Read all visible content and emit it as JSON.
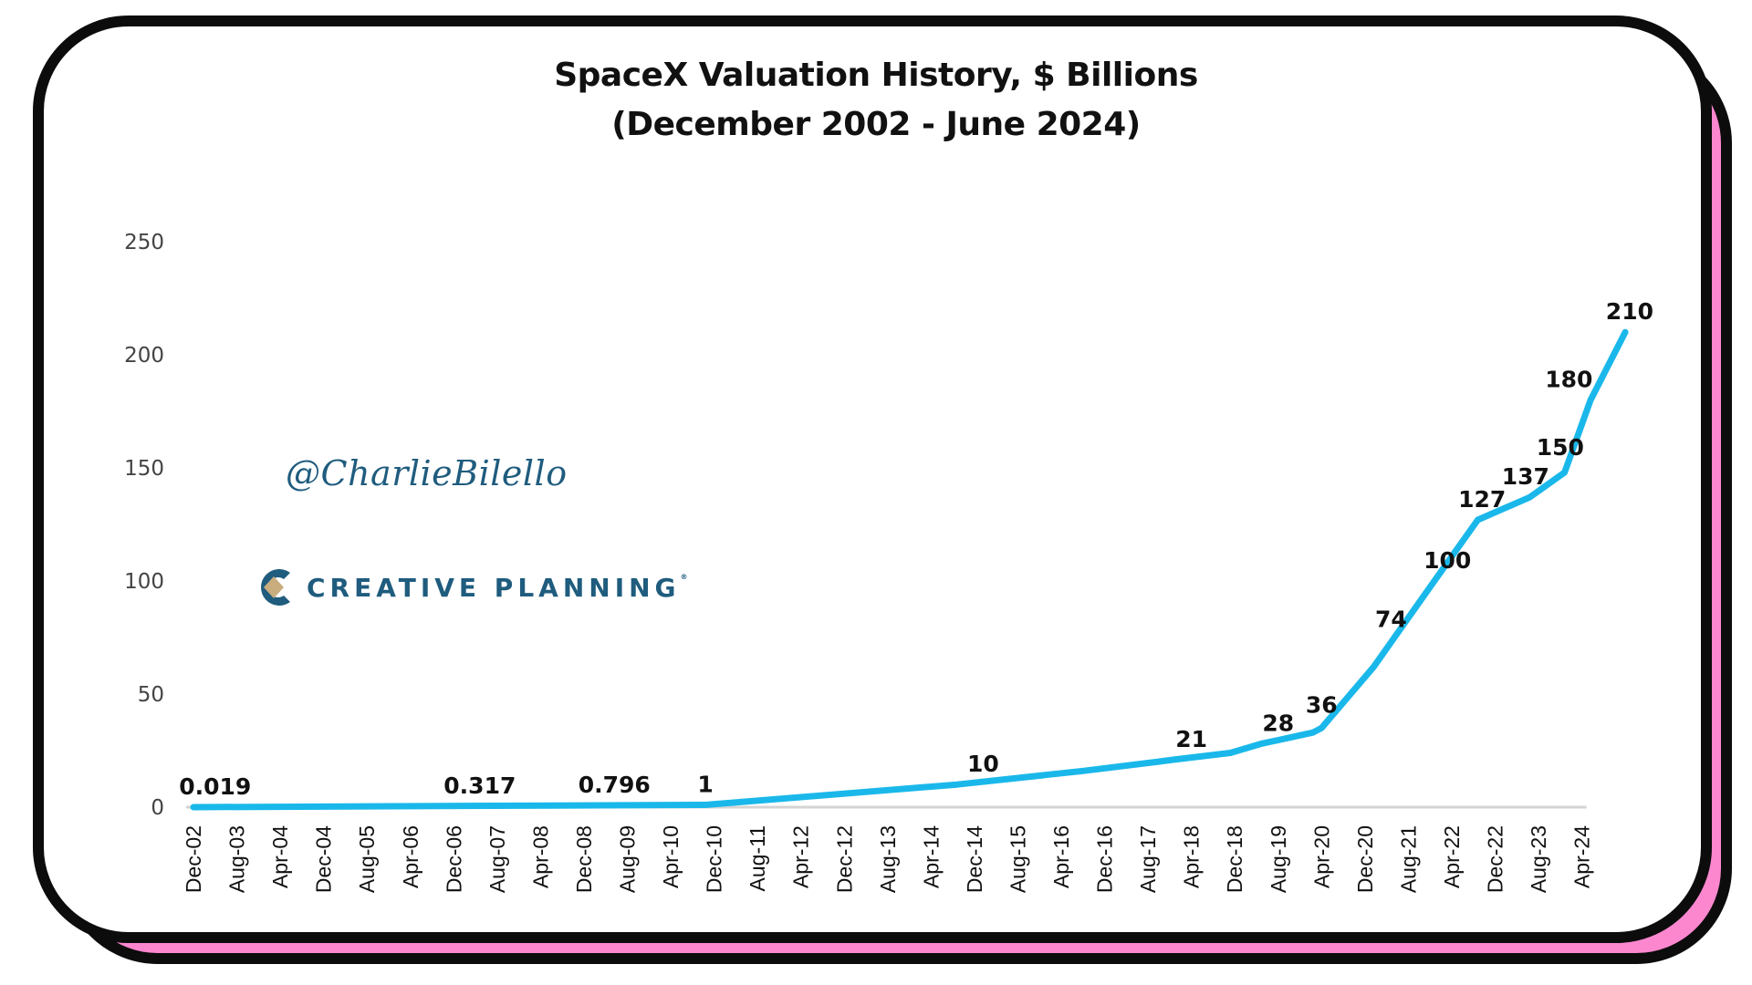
{
  "watermark": "@CharlieBilello",
  "logo": {
    "text": "CREATIVE PLANNING",
    "reg": "®",
    "colors": {
      "primary": "#1f5c7e",
      "accent": "#c9ad7f"
    }
  },
  "theme": {
    "line_color": "#1ab8ea",
    "frame_color": "#0c0c0c",
    "shadow_color": "#fc87cf"
  },
  "chart_data": {
    "type": "line",
    "title": "SpaceX Valuation History, $ Billions",
    "subtitle": "(December 2002 - June 2024)",
    "xlabel": "",
    "ylabel": "",
    "ylim": [
      0,
      250
    ],
    "yticks": [
      0,
      50,
      100,
      150,
      200,
      250
    ],
    "grid": false,
    "legend": "none",
    "x_tick_labels": [
      "Dec-02",
      "Aug-03",
      "Apr-04",
      "Dec-04",
      "Aug-05",
      "Apr-06",
      "Dec-06",
      "Aug-07",
      "Apr-08",
      "Dec-08",
      "Aug-09",
      "Apr-10",
      "Dec-10",
      "Aug-11",
      "Apr-12",
      "Dec-12",
      "Aug-13",
      "Apr-14",
      "Dec-14",
      "Aug-15",
      "Apr-16",
      "Dec-16",
      "Aug-17",
      "Apr-18",
      "Dec-18",
      "Aug-19",
      "Apr-20",
      "Dec-20",
      "Aug-21",
      "Apr-22",
      "Dec-22",
      "Aug-23",
      "Apr-24"
    ],
    "series": [
      {
        "name": "SpaceX Valuation ($B)",
        "points": [
          {
            "x": 0,
            "y": 0.019
          },
          {
            "x": 6.5,
            "y": 0.317
          },
          {
            "x": 9.7,
            "y": 0.796
          },
          {
            "x": 11.8,
            "y": 1
          },
          {
            "x": 17.6,
            "y": 10
          },
          {
            "x": 22.6,
            "y": 21
          },
          {
            "x": 23.9,
            "y": 24
          },
          {
            "x": 24.6,
            "y": 28
          },
          {
            "x": 25.8,
            "y": 33
          },
          {
            "x": 25.9,
            "y": 36
          },
          {
            "x": 27.2,
            "y": 74
          },
          {
            "x": 28.6,
            "y": 100
          },
          {
            "x": 29.8,
            "y": 127
          },
          {
            "x": 30.8,
            "y": 137
          },
          {
            "x": 31.8,
            "y": 150
          },
          {
            "x": 31.9,
            "y": 180
          },
          {
            "x": 32.0,
            "y": 210
          }
        ]
      }
    ],
    "line_points": [
      [
        0,
        0.019
      ],
      [
        11.8,
        1
      ],
      [
        17.6,
        10
      ],
      [
        20.5,
        16
      ],
      [
        22.2,
        20
      ],
      [
        22.6,
        21
      ],
      [
        23.9,
        24
      ],
      [
        24.6,
        28
      ],
      [
        25.8,
        33
      ],
      [
        26.0,
        35
      ],
      [
        27.2,
        62
      ],
      [
        28.6,
        100
      ],
      [
        29.6,
        127
      ],
      [
        30.8,
        137
      ],
      [
        31.6,
        148
      ],
      [
        32.2,
        180
      ],
      [
        33.0,
        210
      ]
    ],
    "data_labels": [
      {
        "text": "0.019",
        "x": 0.5,
        "y": 0.019
      },
      {
        "text": "0.317",
        "x": 6.6,
        "y": 0.317
      },
      {
        "text": "0.796",
        "x": 9.7,
        "y": 0.796
      },
      {
        "text": "1",
        "x": 11.8,
        "y": 1
      },
      {
        "text": "10",
        "x": 18.2,
        "y": 10
      },
      {
        "text": "21",
        "x": 23.0,
        "y": 21
      },
      {
        "text": "28",
        "x": 25.0,
        "y": 28
      },
      {
        "text": "36",
        "x": 26.0,
        "y": 36
      },
      {
        "text": "74",
        "x": 27.6,
        "y": 74
      },
      {
        "text": "100",
        "x": 28.9,
        "y": 100
      },
      {
        "text": "127",
        "x": 29.7,
        "y": 127
      },
      {
        "text": "137",
        "x": 30.7,
        "y": 137
      },
      {
        "text": "150",
        "x": 31.5,
        "y": 150
      },
      {
        "text": "180",
        "x": 31.7,
        "y": 180
      },
      {
        "text": "210",
        "x": 33.1,
        "y": 210
      }
    ]
  }
}
